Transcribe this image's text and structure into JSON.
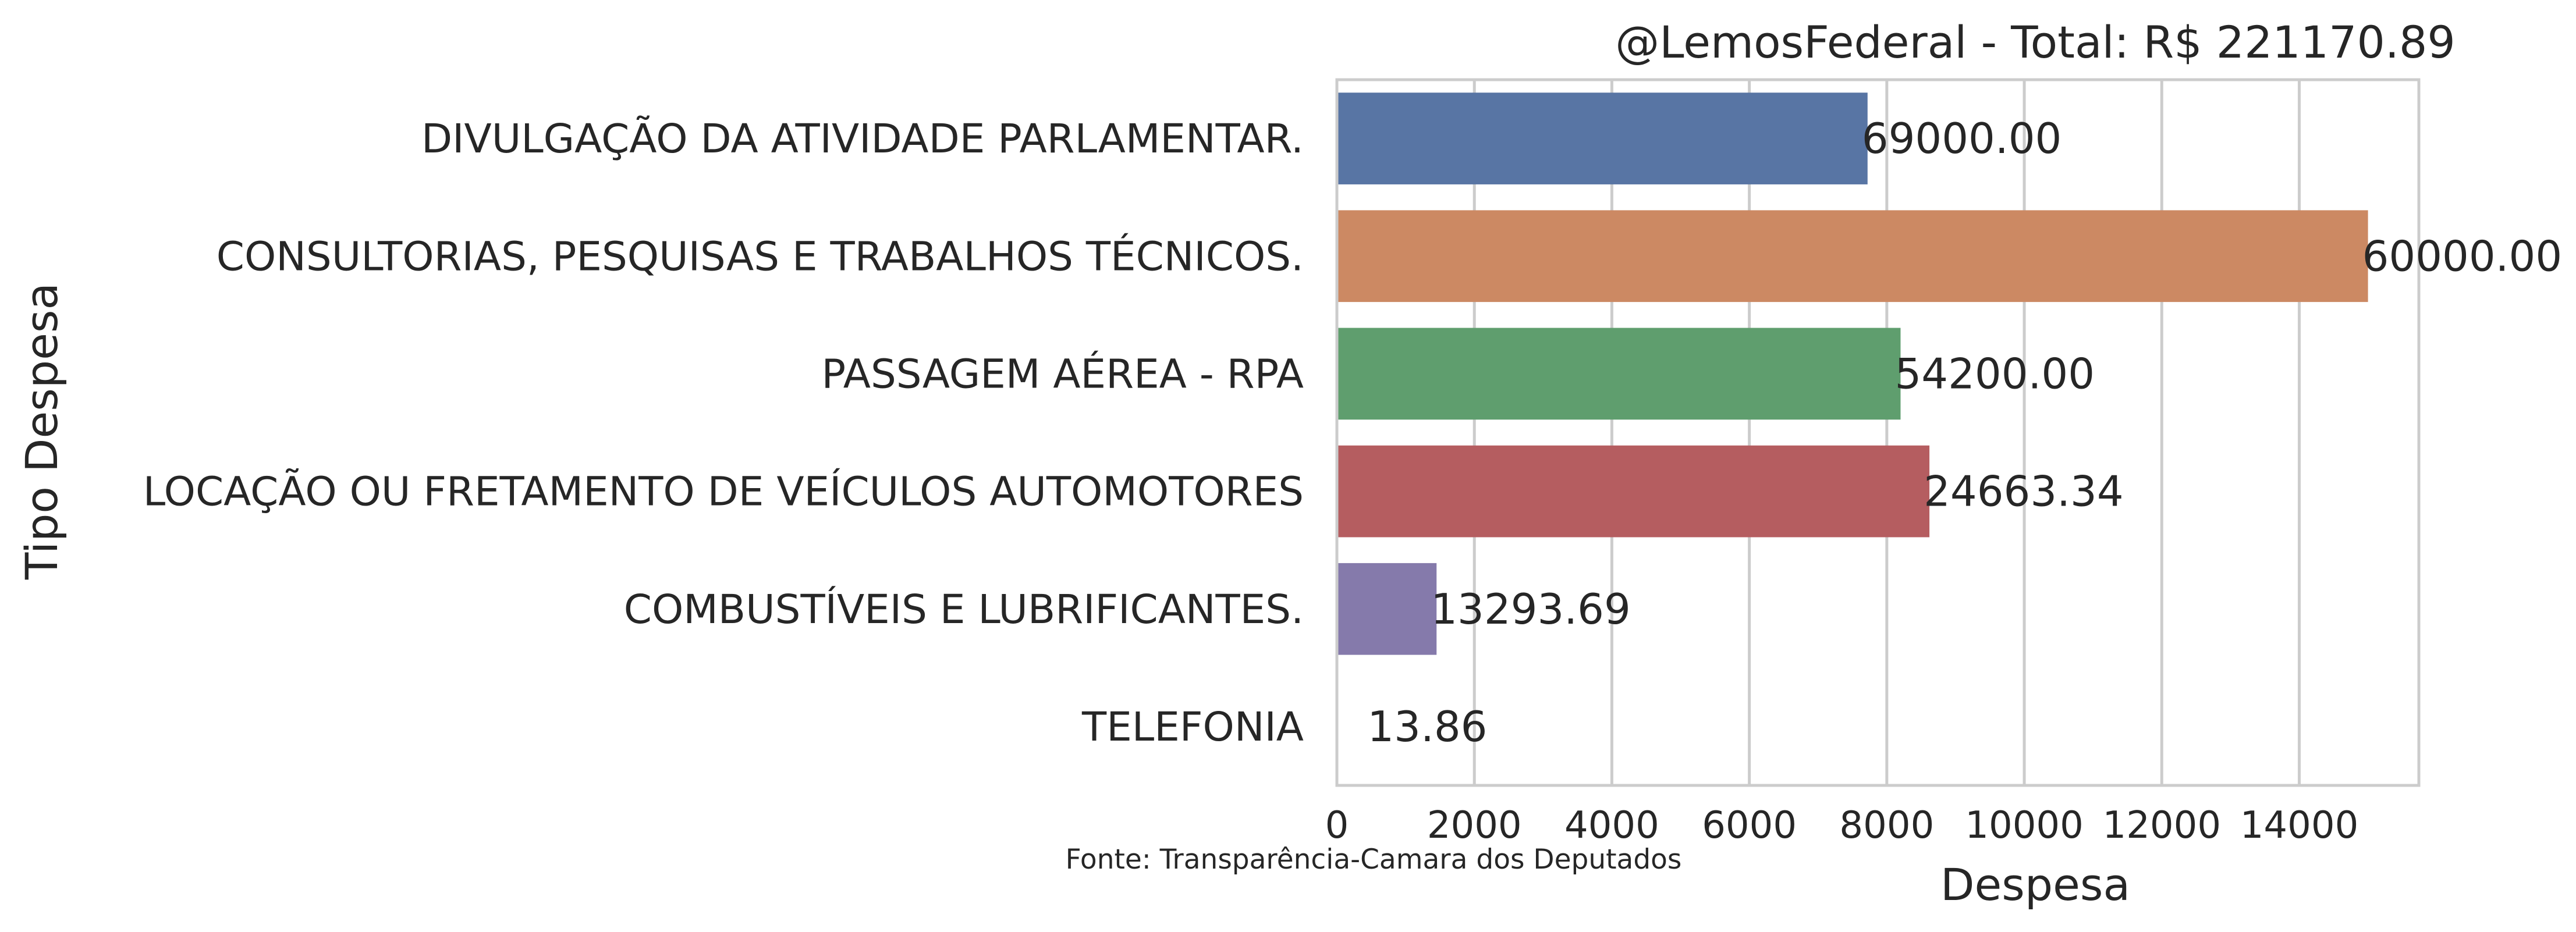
{
  "chart_data": {
    "type": "bar",
    "orientation": "horizontal",
    "title": "@LemosFederal - Total: R$ 221170.89",
    "xlabel": "Despesa",
    "ylabel": "Tipo Despesa",
    "source_note": "Fonte: Transparência-Camara dos Deputados",
    "xlim": [
      0,
      15740
    ],
    "xticks": [
      0,
      2000,
      4000,
      6000,
      8000,
      10000,
      12000,
      14000
    ],
    "grid": "vertical",
    "categories": [
      "DIVULGAÇÃO DA ATIVIDADE PARLAMENTAR.",
      "CONSULTORIAS, PESQUISAS E TRABALHOS TÉCNICOS.",
      "PASSAGEM AÉREA - RPA",
      "LOCAÇÃO OU FRETAMENTO DE VEÍCULOS AUTOMOTORES",
      "COMBUSTÍVEIS E LUBRIFICANTES.",
      "TELEFONIA"
    ],
    "values": [
      7720,
      15000,
      8200,
      8620,
      1450,
      3
    ],
    "data_labels": [
      "69000.00",
      "60000.00",
      "54200.00",
      "24663.34",
      "13293.69",
      "13.86"
    ],
    "colors": [
      "#5875a4",
      "#cc8963",
      "#5f9e6e",
      "#b55d60",
      "#857aab",
      "#8d7866"
    ]
  }
}
